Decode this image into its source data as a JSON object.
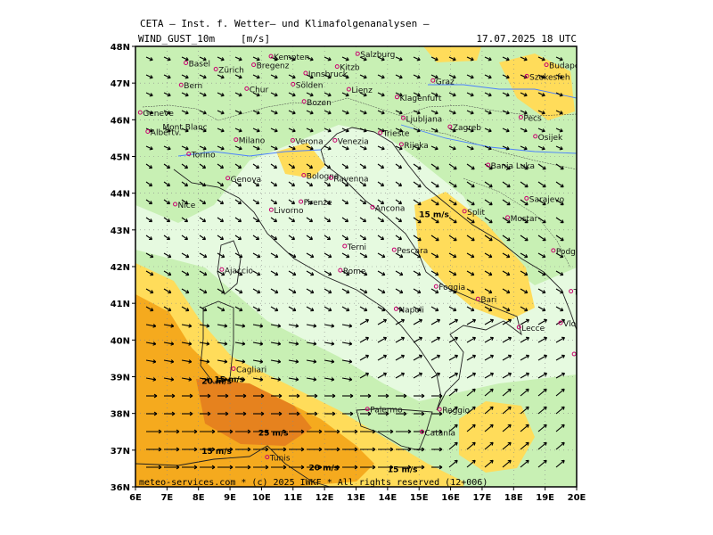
{
  "header": {
    "institute": "CETA – Inst. f. Wetter– und Klimafolgenanalysen –",
    "parameter": "WIND_GUST_10m",
    "unit": "m/s",
    "valid_time": "17.07.2025  18 UTC"
  },
  "footer": "meteo-services.com * (c) 2025 IWKF * All rights reserved (12+006)",
  "axes": {
    "lon_range": [
      6,
      20
    ],
    "lat_range": [
      36,
      48
    ],
    "lon_ticks": [
      "6E",
      "7E",
      "8E",
      "9E",
      "10E",
      "11E",
      "12E",
      "13E",
      "14E",
      "15E",
      "16E",
      "17E",
      "18E",
      "19E",
      "20E"
    ],
    "lat_ticks": [
      "36N",
      "37N",
      "38N",
      "39N",
      "40N",
      "41N",
      "42N",
      "43N",
      "44N",
      "45N",
      "46N",
      "47N",
      "48N"
    ]
  },
  "colors": {
    "calm": "#e6fae0",
    "light": "#c8f0b4",
    "moderate": "#ffdc5a",
    "strong": "#f5aa1e",
    "severe": "#e6821e",
    "land_outline": "#202020",
    "river": "#4a80ff",
    "city_marker": "#c8006e",
    "arrow": "#000000"
  },
  "cities": [
    {
      "name": "Basel",
      "lon": 7.6,
      "lat": 47.55
    },
    {
      "name": "Zürich",
      "lon": 8.55,
      "lat": 47.38
    },
    {
      "name": "Bregenz",
      "lon": 9.75,
      "lat": 47.5
    },
    {
      "name": "Kempten",
      "lon": 10.3,
      "lat": 47.73
    },
    {
      "name": "Kitzb",
      "lon": 12.4,
      "lat": 47.45
    },
    {
      "name": "Salzburg",
      "lon": 13.05,
      "lat": 47.8
    },
    {
      "name": "Bern",
      "lon": 7.45,
      "lat": 46.95
    },
    {
      "name": "Chur",
      "lon": 9.53,
      "lat": 46.85
    },
    {
      "name": "Innsbruck",
      "lon": 11.4,
      "lat": 47.27
    },
    {
      "name": "Sölden",
      "lon": 11.0,
      "lat": 46.97
    },
    {
      "name": "Lienz",
      "lon": 12.77,
      "lat": 46.83
    },
    {
      "name": "Klagenfurt",
      "lon": 14.3,
      "lat": 46.62
    },
    {
      "name": "Graz",
      "lon": 15.44,
      "lat": 47.07
    },
    {
      "name": "Budapest",
      "lon": 19.04,
      "lat": 47.5
    },
    {
      "name": "Szekesfeh",
      "lon": 18.42,
      "lat": 47.19
    },
    {
      "name": "Geneve",
      "lon": 6.15,
      "lat": 46.2
    },
    {
      "name": "Albertv.",
      "lon": 6.39,
      "lat": 45.68
    },
    {
      "name": "Bozen",
      "lon": 11.35,
      "lat": 46.5
    },
    {
      "name": "Ljubljana",
      "lon": 14.5,
      "lat": 46.05
    },
    {
      "name": "Pecs",
      "lon": 18.23,
      "lat": 46.07
    },
    {
      "name": "Milano",
      "lon": 9.19,
      "lat": 45.46
    },
    {
      "name": "Verona",
      "lon": 10.99,
      "lat": 45.44
    },
    {
      "name": "Venezia",
      "lon": 12.33,
      "lat": 45.44
    },
    {
      "name": "Trieste",
      "lon": 13.77,
      "lat": 45.65
    },
    {
      "name": "Zagreb",
      "lon": 15.98,
      "lat": 45.81
    },
    {
      "name": "Rijeka",
      "lon": 14.44,
      "lat": 45.33
    },
    {
      "name": "Osijek",
      "lon": 18.69,
      "lat": 45.55
    },
    {
      "name": "Torino",
      "lon": 7.69,
      "lat": 45.07
    },
    {
      "name": "Genova",
      "lon": 8.93,
      "lat": 44.41
    },
    {
      "name": "Bologna",
      "lon": 11.34,
      "lat": 44.49
    },
    {
      "name": "Ravenna",
      "lon": 12.2,
      "lat": 44.42
    },
    {
      "name": "Banja Luka",
      "lon": 17.19,
      "lat": 44.77
    },
    {
      "name": "Nice",
      "lon": 7.26,
      "lat": 43.7
    },
    {
      "name": "Firenze",
      "lon": 11.25,
      "lat": 43.77
    },
    {
      "name": "Ancona",
      "lon": 13.52,
      "lat": 43.62
    },
    {
      "name": "Split",
      "lon": 16.44,
      "lat": 43.51
    },
    {
      "name": "Sarajevo",
      "lon": 18.41,
      "lat": 43.86
    },
    {
      "name": "Livorno",
      "lon": 10.31,
      "lat": 43.55
    },
    {
      "name": "Mostar",
      "lon": 17.81,
      "lat": 43.34
    },
    {
      "name": "Terni",
      "lon": 12.64,
      "lat": 42.56
    },
    {
      "name": "Pescara",
      "lon": 14.21,
      "lat": 42.46
    },
    {
      "name": "Podgorica",
      "lon": 19.26,
      "lat": 42.44
    },
    {
      "name": "Ajaccio",
      "lon": 8.74,
      "lat": 41.92
    },
    {
      "name": "Rome",
      "lon": 12.5,
      "lat": 41.9
    },
    {
      "name": "Tirana",
      "lon": 19.82,
      "lat": 41.33
    },
    {
      "name": "Foggia",
      "lon": 15.54,
      "lat": 41.46
    },
    {
      "name": "Bari",
      "lon": 16.87,
      "lat": 41.12
    },
    {
      "name": "Napoli",
      "lon": 14.27,
      "lat": 40.85
    },
    {
      "name": "Lecce",
      "lon": 18.17,
      "lat": 40.35
    },
    {
      "name": "Vlore",
      "lon": 19.49,
      "lat": 40.47
    },
    {
      "name": "Korfu",
      "lon": 19.92,
      "lat": 39.62
    },
    {
      "name": "Cagliari",
      "lon": 9.11,
      "lat": 39.22
    },
    {
      "name": "Reggio",
      "lon": 15.65,
      "lat": 38.11
    },
    {
      "name": "Palermo",
      "lon": 13.36,
      "lat": 38.12
    },
    {
      "name": "Catania",
      "lon": 15.09,
      "lat": 37.5
    },
    {
      "name": "Tunis",
      "lon": 10.18,
      "lat": 36.81
    }
  ],
  "highlight_label": {
    "name": "Mont Blanc",
    "lon": 6.86,
    "lat": 45.83
  },
  "contour_labels": [
    {
      "text": "15 m/s",
      "lon": 15.0,
      "lat": 43.35
    },
    {
      "text": "15 m/s",
      "lon": 8.5,
      "lat": 38.85
    },
    {
      "text": "20 m/s",
      "lon": 8.1,
      "lat": 38.8
    },
    {
      "text": "25 m/s",
      "lon": 9.9,
      "lat": 37.4
    },
    {
      "text": "15 m/s",
      "lon": 8.1,
      "lat": 36.9
    },
    {
      "text": "20 m/s",
      "lon": 11.5,
      "lat": 36.45
    },
    {
      "text": "15 m/s",
      "lon": 14.0,
      "lat": 36.4
    }
  ]
}
